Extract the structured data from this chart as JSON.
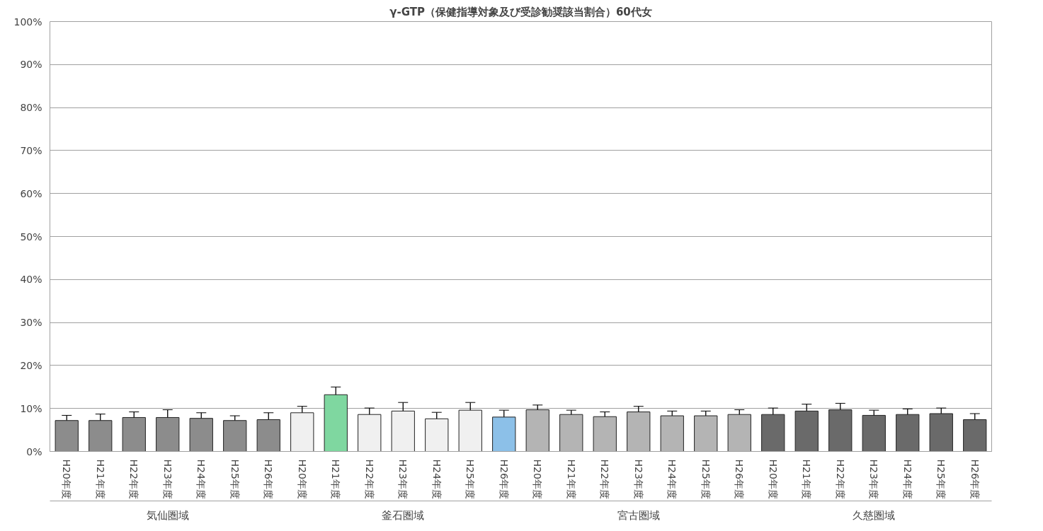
{
  "chart_data": {
    "type": "bar",
    "title": "γ-GTP（保健指導対象及び受診勧奨該当割合）60代女",
    "categories": [
      "H20年度",
      "H21年度",
      "H22年度",
      "H23年度",
      "H24年度",
      "H25年度",
      "H26年度",
      "H20年度",
      "H21年度",
      "H22年度",
      "H23年度",
      "H24年度",
      "H25年度",
      "H26年度",
      "H20年度",
      "H21年度",
      "H22年度",
      "H23年度",
      "H24年度",
      "H25年度",
      "H26年度",
      "H20年度",
      "H21年度",
      "H22年度",
      "H23年度",
      "H24年度",
      "H25年度",
      "H26年度"
    ],
    "values": [
      7.2,
      7.2,
      7.9,
      7.9,
      7.7,
      7.2,
      7.4,
      9.0,
      13.2,
      8.6,
      9.4,
      7.6,
      9.6,
      8.0,
      9.7,
      8.6,
      8.1,
      9.2,
      8.3,
      8.3,
      8.6,
      8.6,
      9.4,
      9.7,
      8.4,
      8.6,
      8.8,
      7.4
    ],
    "errors": [
      1.2,
      1.5,
      1.3,
      1.8,
      1.3,
      1.1,
      1.6,
      1.5,
      1.8,
      1.5,
      2.0,
      1.5,
      1.8,
      1.6,
      1.1,
      1.0,
      1.1,
      1.3,
      1.1,
      1.1,
      1.1,
      1.5,
      1.6,
      1.5,
      1.2,
      1.3,
      1.3,
      1.4
    ],
    "colors": [
      "#8c8c8c",
      "#8c8c8c",
      "#8c8c8c",
      "#8c8c8c",
      "#8c8c8c",
      "#8c8c8c",
      "#8c8c8c",
      "#f0f0f0",
      "#7fd7a0",
      "#f0f0f0",
      "#f0f0f0",
      "#f0f0f0",
      "#f0f0f0",
      "#8cc0e8",
      "#b4b4b4",
      "#b4b4b4",
      "#b4b4b4",
      "#b4b4b4",
      "#b4b4b4",
      "#b4b4b4",
      "#b4b4b4",
      "#6a6a6a",
      "#6a6a6a",
      "#6a6a6a",
      "#6a6a6a",
      "#6a6a6a",
      "#6a6a6a",
      "#6a6a6a"
    ],
    "annotations": [
      "気仙圏域",
      "釜石圏域",
      "宮古圏域",
      "久慈圏域"
    ],
    "ylim": [
      0,
      100
    ],
    "yticks": [
      {
        "value": 0,
        "label": "0%"
      },
      {
        "value": 10,
        "label": "10%"
      },
      {
        "value": 20,
        "label": "20%"
      },
      {
        "value": 30,
        "label": "30%"
      },
      {
        "value": 40,
        "label": "40%"
      },
      {
        "value": 50,
        "label": "50%"
      },
      {
        "value": 60,
        "label": "60%"
      },
      {
        "value": 70,
        "label": "70%"
      },
      {
        "value": 80,
        "label": "80%"
      },
      {
        "value": 90,
        "label": "90%"
      },
      {
        "value": 100,
        "label": "100%"
      }
    ],
    "grid": "y"
  }
}
